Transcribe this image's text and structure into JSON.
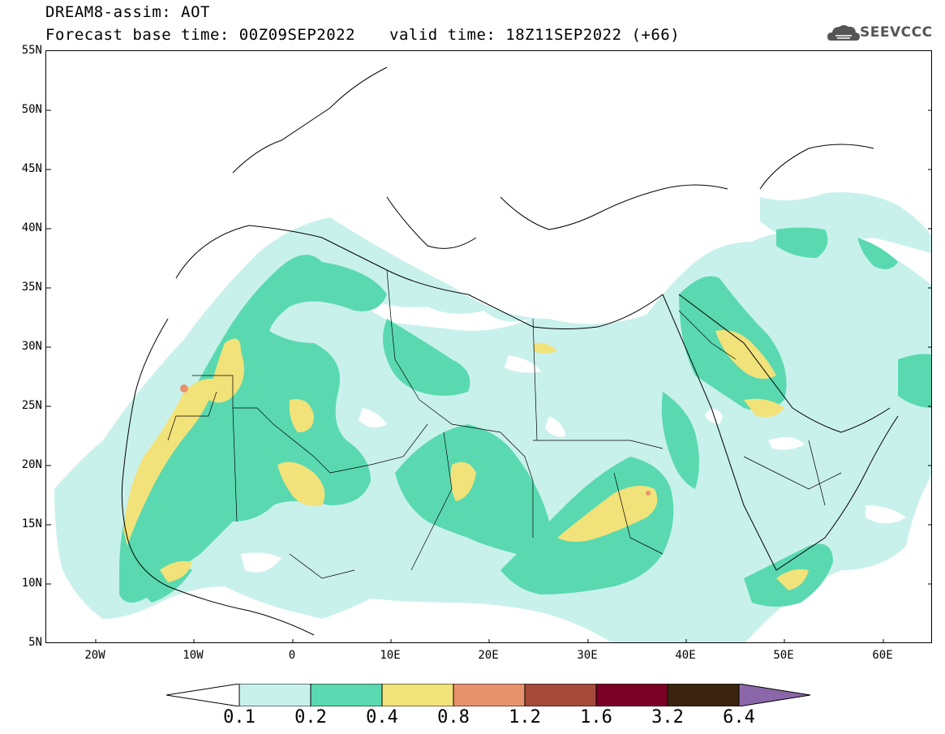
{
  "header": {
    "title": "DREAM8-assim: AOT",
    "base_time": "Forecast base time: 00Z09SEP2022",
    "valid_time": "valid time: 18Z11SEP2022 (+66)",
    "logo_text": "SEEVCCC"
  },
  "map": {
    "lat_labels": [
      "55N",
      "50N",
      "45N",
      "40N",
      "35N",
      "30N",
      "25N",
      "20N",
      "15N",
      "10N",
      "5N"
    ],
    "lon_labels": [
      "20W",
      "10W",
      "0",
      "10E",
      "20E",
      "30E",
      "40E",
      "50E",
      "60E"
    ]
  },
  "colorbar": {
    "labels": [
      "0.1",
      "0.2",
      "0.4",
      "0.8",
      "1.2",
      "1.6",
      "3.2",
      "6.4"
    ],
    "colors": [
      "#c9f1ec",
      "#5ad9b0",
      "#f2e27a",
      "#e8926c",
      "#a54a3b",
      "#7a0026",
      "#3a2410",
      "#8b66a8"
    ]
  }
}
